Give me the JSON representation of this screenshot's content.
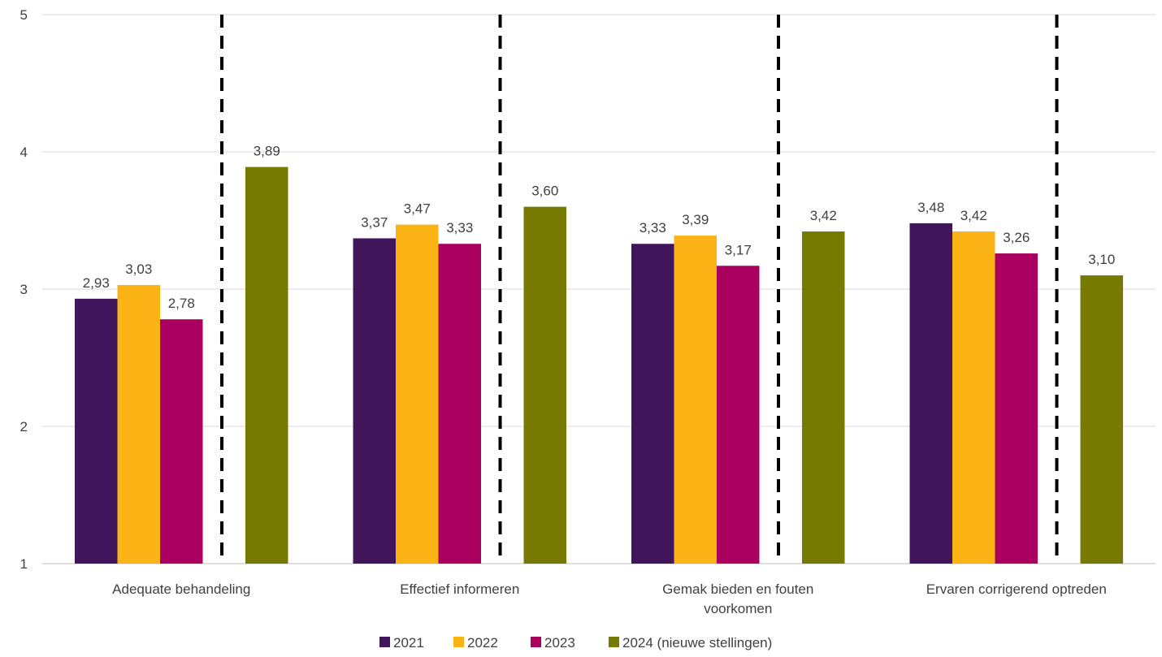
{
  "chart_data": {
    "type": "bar",
    "categories": [
      [
        "Adequate behandeling"
      ],
      [
        "Effectief informeren"
      ],
      [
        "Gemak bieden en fouten",
        "voorkomen"
      ],
      [
        "Ervaren corrigerend optreden"
      ]
    ],
    "series": [
      {
        "name": "2021",
        "color": "#40155c",
        "values": [
          2.93,
          3.37,
          3.33,
          3.48
        ],
        "labels": [
          "2,93",
          "3,37",
          "3,33",
          "3,48"
        ]
      },
      {
        "name": "2022",
        "color": "#fbb316",
        "values": [
          3.03,
          3.47,
          3.39,
          3.42
        ],
        "labels": [
          "3,03",
          "3,47",
          "3,39",
          "3,42"
        ]
      },
      {
        "name": "2023",
        "color": "#ab005f",
        "values": [
          2.78,
          3.33,
          3.17,
          3.26
        ],
        "labels": [
          "2,78",
          "3,33",
          "3,17",
          "3,26"
        ]
      },
      {
        "name": "2024 (nieuwe stellingen)",
        "color": "#777a00",
        "values": [
          3.89,
          3.6,
          3.42,
          3.1
        ],
        "labels": [
          "3,89",
          "3,60",
          "3,42",
          "3,10"
        ]
      }
    ],
    "yticks": [
      "1",
      "2",
      "3",
      "4",
      "5"
    ],
    "ylim": [
      1,
      5
    ],
    "grid": true,
    "legend_position": "bottom",
    "separator_lines": "dashed vertical line between 2023 and 2024 bars in each group"
  }
}
